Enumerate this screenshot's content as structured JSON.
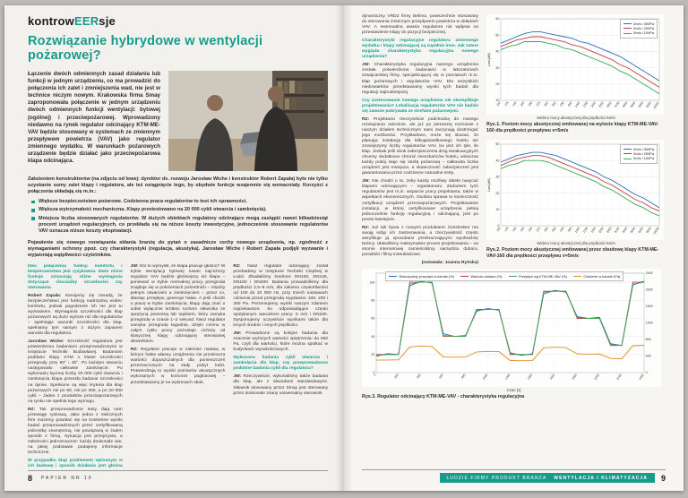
{
  "accent": "#169b8d",
  "masthead": {
    "pre": "kontrow",
    "hl": "EER",
    "post": "sje"
  },
  "title": "Rozwiązanie hybrydowe w wentylacji pożarowej?",
  "lead": "Łączenie dwóch odmiennych zasad działania lub funkcji w jednym urządzeniu, co ma prowadzić do połączenia ich zalet i zmniejszenia wad, nie jest w technice niczym nowym. Krakowska firma Smay zaproponowała połączenie w jednym urządzeniu dwóch odmiennych funkcji wentylacji: bytowej (ogólnej) i przeciwpożarowej. Wprowadzony niedawno na rynek regulator odcinający KTM-ME-VAV będzie stosowany w systemach ze zmiennym przepływem powietrza (VAV) jako regulator zmiennego wydatku. W warunkach pożarowych urządzenie będzie działać jako przeciwpożarowa klapa odcinająca.",
  "photo_caption": "Założeniem konstruktorów (na zdjęciu od lewej: dyrektor ds. rozwoju Jarosław Wiche i konstruktor Robert Zapała) było nie tylko uzyskanie sumy zalet klapy i regulatora, ale też osiągnięcie tego, by obydwie funkcje wzajemnie się wzmacniały. Korzyści z połączenia składają się m.in.:",
  "bullets": [
    "Większe bezpieczeństwo pożarowe. Codzienna praca regulatorów to test ich sprawności.",
    "Większa wytrzymałość mechaniczna. Klapy przetestowano na 20 000 cykli otwarcia i zamknięcia).",
    "Mniejsza liczba stosowanych regulatorów. W dużych obiektach regulatory odcinające mogą zastąpić nawet kilkadziesiąt procent urządzeń regulacyjnych, co przekłada się na niższe koszty inwestycyjne, jednocześnie stosowanie regulatorów VAV oznacza niższe koszty eksploatacji."
  ],
  "closing": "Pojawienie się nowego rozwiązania skłania branżę do pytań o zasadnicze cechy nowego urządzenia, np. zgodność z wymaganiami ochrony ppoż. czy charakterystyki (regulacja, akustyka). Jarosław Wiche i Robert Zapała podjęli wyzwanie i wyjaśniają wątpliwości czytelników.",
  "left_cols": [
    [
      {
        "k": "q",
        "t": "Idea połączenia funkcji komfortu i bezpieczeństwa jest ryzykowna. Dwie różne funkcje oznaczają różne wymagania dotyczące chociażby szczelności czy sterowania."
      },
      {
        "sp": "Robert Zapała",
        "t": "Kierujemy się zasadą, że bezpieczeństwo jest funkcją nadrzędną wobec komfortu, jednak pogodzenie ich nie jest tu wyzwaniem. Wymagania szczelności dla klap pożarowych są dużo wyższe niż dla regulatorów – spełniając warunki szczelności dla klap, spełniamy tym samym z dużym zapasem warunki dla regulatora."
      },
      {
        "sp": "Jarosław Wiche",
        "t": "Szczelność regulatora jest potwierdzona badaniami przeprowadzonymi w Instytucie Techniki Budowlanej. Badaniom poddano klapy KTM o klasie szczelności przegrody przy 60° i 30°. Po każdym otwarciu następowało całkowite zamknięcie. Po wykonaniu łącznej liczby 20 000 cykli otwarcia i zamknięcia klapa przeszła badanie szczelności na dymie. Spełnione są więc kryteria dla klap pożarowych nie po 50, nie po 300, a po 20 000 cykli – żaden z produktów przeciwpożarowych na rynku nie spełnia tego wymogu."
      },
      {
        "sp": "RZ",
        "t": "Tak przeprowadzone testy dają nam przewagę rynkową. Jako jedna z nielicznych firm możemy powołać się na konkretne wyniki badań przeprowadzonych przez certyfikowaną jednostkę zewnętrzną, nie powiązaną w żaden sposób z firmą. Sytuacja jest przejrzysta, a zależności jednoznaczne: każdy doskonale wie, na jakiej podstawie podajemy informacje techniczne."
      },
      {
        "k": "q",
        "t": "W przypadku klap problemem wpisanym w ich budowę i sposób działania jest głośna praca. Jak wygląda akustyka w działaniu regulacyjnym?"
      }
    ],
    [
      {
        "sp": "JW",
        "t": "Kto to wymyślił, że klapa pracuje głośno? W trybie wentylacji bytowej nawet najcichszy regulator VAV będzie głośniejszy niż klapa – ponieważ w trybie normalnej pracy przegroda znajduje się w położeniach pośrednich – między pełnym otwarciem a zamknięciem – przez co, dławiąc przepływ, generuje hałas. A jeśli chodzi o pracę w trybie zamknięcia, klapy dają znać o sobie wyłącznie krótkim ruchem siłownika ze sprężyną powrotną lub topikiem, który zamyka przegrodę w czasie 1–2 sekund. Nasz regulator zamyka przegrodę łagodnie, dzięki czemu w całym cyklu pracy pozostaje cichszy od klasycznej klapy odcinającej sterowanej siłownikiem."
      },
      {
        "sp": "RZ",
        "t": "Regulator pracuje w zakresie nastaw, w którym hałas własny urządzenia nie przekracza wartości dopuszczalnych dla pomieszczeń przeznaczonych na stały pobyt ludzi. Potwierdzają to wyniki pomiarów akustycznych wykonanych w komorze pogłosowej – przedstawiamy je na wykresach obok."
      }
    ],
    [
      {
        "sp": "RZ",
        "t": "Nasz regulator odcinający został przebadany w Instytucie Techniki Cieplnej w Łodzi. Zbadaliśmy średnice DN100, DN125, DN160 i DN200. Badania prowadziliśmy dla prędkości 2,5–8 m/s, dla zakresu częstotliwości od 100 do 10 000 Hz, przy trzech nastawach ciśnienia przed przegrodą regulatora: 100, 200 i 300 Pa. Prezentujemy wyniki naszym zdaniem najciekawsze, bo odpowiadające często spotykanym warunkom pracy: 5 m/s i DN160. Dysponujemy oczywiście wynikami także dla innych średnic i innych prędkości."
      },
      {
        "sp": "JW",
        "t": "Prowadzone są kolejne badania dla znacznie wyższych wartości spiętrzenia: do 650 Pa, czyli dla wartości, które można spotkać w budynkach wysokościowych."
      },
      {
        "k": "q",
        "t": "Wykonano badania cykli otwarcia i zamknięcia dla klap, czy przeprowadzono podobne badania cykli dla regulatora?"
      },
      {
        "sp": "JW",
        "t": "Rzeczywiście, wykonaliśmy także badania dla klap, ale z obwodami standardowymi. Siłownik stosowany przez Smay jest sterowany przez doskonale znany uniwersalny sterownik"
      }
    ]
  ],
  "right_col": [
    {
      "t": "dynamiczny VRD2 firmy Belimo, powszechnie stosowany do sterowania zmiennym przepływem powietrza w układach VAV. A ewentualna awaria regulatora nie wpływa na przestawienie klapy do pozycji bezpiecznej."
    },
    {
      "k": "q",
      "t": "Charakterystyki regulacyjne regulatora zmiennego wydatku i klapy odcinającej są zupełnie inne. Jak zatem wygląda charakterystyka regulacyjna nowego urządzenia?"
    },
    {
      "sp": "JW",
      "t": "Charakterystyka regulacyjna naszego urządzenia została potwierdzona badaniami w laboratoriach szwajcarskiej firmy, specjalizującej się w pomiarach m.in. klap pożarowych i regulatorów VAV. Dla wszystkich niedowiarków przedstawiamy wyniki tych badań dla regulacji najtrudniejszej."
    },
    {
      "k": "q",
      "t": "Czy zastosowanie nowego urządzenia nie skomplikuje projektowania? Lokalizacja regulatorów VAV nie będzie się zawsze pokrywała ze strefami pożarowymi."
    },
    {
      "sp": "RZ",
      "t": "Projektanci rzeczywiście podchodzą do nowego rozwiązania ostrożnie, ale już po pierwszej rozmowie z naszym działem technicznym sami zaczynają dostrzegać jego możliwości. Przykładowo, może się okazać, że planując instalację dla kilkugwiazdkowego hotelu nie zmniejszymy liczby regulatorów VAV, bo jest ich tyle, ile klap. Jednak jeśli obok zabezpieczenia dróg ewakuacyjnych chcemy dodatkowo chronić mieszkańców hotelu, wówczas każdy pokój staje się strefą pożarową – całkowita liczba urządzeń jest mniejsza, a skuteczność zabezpieczeń jest gwarantowana przez codzienne naturalne testy."
    },
    {
      "sp": "JW",
      "t": "Nie chodzi o to, żeby każdy możliwy obiekt nasycać klapami odcinającymi – regulatorami. Zadaniem tych regulatorów jest m.in. wsparcie pracy projektanta, także w aspektach ekonomicznych. Osobna sprawa to konieczność certyfikacji urządzeń przeciwpożarowych. Projektowanie instalacji, w której certyfikowane urządzenia pełnią jednocześnie funkcję regulacyjną i odcinającą, jest po prostu łatwiejsze."
    },
    {
      "sp": "RZ",
      "t": "Już tak bywa z nowymi produktami: konstruktor ma swoją wizję ich zastosowania, a rzeczywistość często weryfikuje ją sposobami przekraczającymi wyobraźnię twórcy. Ułatwiliśmy maksymalnie proces projektowania – na stronie internetowej zamieściliśmy narzędzia doboru, poradniki i filmy instruktażowe."
    },
    {
      "k": "note",
      "t": "(notowała: Joanna Ryńska)"
    }
  ],
  "charts": [
    {
      "id": "c1",
      "type": "line",
      "caption": "Rys.1. Poziom mocy akustycznej emitowanej na wylocie klapy KTM-ME-VAV-160 dla prędkości przepływu v=5m/s",
      "axis_title": "Widmo mocy akustycznej dla prędkości 5m/s",
      "ylabel": "LwA [dB]",
      "ylim": [
        10,
        60
      ],
      "y_ticks": [
        10,
        20,
        30,
        40,
        50,
        60
      ],
      "rot_x": true,
      "x_labels": [
        "100",
        "125",
        "160",
        "200",
        "250",
        "315",
        "400",
        "500",
        "630",
        "800",
        "1000",
        "1250",
        "1600",
        "2000",
        "2500",
        "3150",
        "4000",
        "5000",
        "6300",
        "8000",
        "10000"
      ],
      "series": [
        {
          "name": "5m/s i 300Pa",
          "color": "#2b6cb8",
          "values": [
            45,
            47,
            49,
            51,
            52,
            52,
            51,
            50,
            49,
            48,
            46,
            45,
            43,
            41,
            39,
            37,
            34,
            31,
            28,
            25,
            22
          ]
        },
        {
          "name": "5m/s i 200Pa",
          "color": "#c23b3b",
          "values": [
            43,
            45,
            47,
            48,
            49,
            49,
            48,
            47,
            46,
            44,
            43,
            41,
            39,
            37,
            35,
            32,
            30,
            27,
            24,
            21,
            18
          ]
        },
        {
          "name": "5m/s i 100Pa",
          "color": "#3aa655",
          "values": [
            41,
            43,
            44,
            46,
            46,
            46,
            45,
            44,
            42,
            41,
            39,
            37,
            35,
            33,
            31,
            28,
            26,
            23,
            20,
            17,
            14
          ]
        }
      ]
    },
    {
      "id": "c2",
      "type": "line",
      "caption": "Rys.2. Poziom mocy akustycznej emitowanej przez obudowę klapy KTM-ME-VAV-160 dla prędkości przepływu v=5m/s",
      "axis_title": "Widmo mocy akustycznej dla prędkości 5m/s",
      "ylabel": "LwA [dB]",
      "ylim": [
        0,
        50
      ],
      "y_ticks": [
        0,
        10,
        20,
        30,
        40,
        50
      ],
      "rot_x": true,
      "x_labels": [
        "100",
        "125",
        "160",
        "200",
        "250",
        "315",
        "400",
        "500",
        "630",
        "800",
        "1000",
        "1250",
        "1600",
        "2000",
        "2500",
        "3150",
        "4000",
        "5000",
        "6300",
        "8000",
        "10000"
      ],
      "series": [
        {
          "name": "5m/s i 300Pa",
          "color": "#2b6cb8",
          "values": [
            39,
            41,
            43,
            44,
            45,
            45,
            44,
            43,
            41,
            39,
            37,
            35,
            33,
            30,
            28,
            25,
            22,
            19,
            17,
            14,
            11
          ]
        },
        {
          "name": "5m/s i 200Pa",
          "color": "#c23b3b",
          "values": [
            37,
            39,
            41,
            42,
            43,
            43,
            42,
            40,
            38,
            36,
            34,
            32,
            30,
            27,
            25,
            22,
            19,
            16,
            14,
            11,
            9
          ]
        },
        {
          "name": "5m/s i 100Pa",
          "color": "#3aa655",
          "values": [
            35,
            37,
            38,
            40,
            40,
            40,
            39,
            37,
            35,
            33,
            31,
            29,
            27,
            24,
            22,
            19,
            16,
            13,
            11,
            8,
            6
          ]
        }
      ]
    },
    {
      "id": "c3",
      "type": "line",
      "caption": "Rys.3. Regulator odcinający KTM-ME-VAV - charakterystyka regulacyjna",
      "axis_title": "Czas [s]",
      "ylim": [
        0,
        110
      ],
      "y_ticks": [
        0,
        20,
        40,
        60,
        80,
        100
      ],
      "rlim": [
        0,
        2400
      ],
      "r_ticks": [
        0,
        400,
        800,
        1200,
        1600,
        2000,
        2400
      ],
      "rot_x": true,
      "x_labels": [
        "0",
        "200",
        "400",
        "600",
        "800",
        "1000",
        "1200",
        "1400",
        "1600",
        "1800",
        "2000",
        "2200",
        "2400"
      ],
      "series": [
        {
          "name": "Rzeczywisty przepływ w kanale (%)",
          "color": "#2b6cb8",
          "values": [
            18,
            21,
            20,
            96,
            101,
            99,
            43,
            40,
            41,
            68,
            71,
            69,
            22,
            19,
            21,
            87,
            91,
            89,
            62,
            60,
            61,
            32,
            30,
            97,
            101
          ]
        },
        {
          "name": "Wartość zadana (%)",
          "color": "#c23b3b",
          "values": [
            20,
            20,
            20,
            100,
            100,
            100,
            40,
            40,
            40,
            70,
            70,
            70,
            20,
            20,
            20,
            90,
            90,
            90,
            60,
            60,
            60,
            30,
            30,
            100,
            100
          ]
        },
        {
          "name": "Przepływ wg KTM-ME-VAV (%)",
          "color": "#3aa655",
          "values": [
            19,
            20,
            20,
            98,
            100,
            100,
            41,
            40,
            40,
            69,
            70,
            70,
            21,
            20,
            20,
            89,
            90,
            90,
            61,
            60,
            60,
            31,
            30,
            98,
            100
          ]
        },
        {
          "name": "Ciśnienie w kanale (Pa)",
          "color": "#e08a1e",
          "axis": "R",
          "values": [
            300,
            305,
            310,
            620,
            640,
            630,
            380,
            372,
            376,
            500,
            512,
            506,
            292,
            286,
            290,
            598,
            612,
            604,
            452,
            446,
            450,
            342,
            336,
            648,
            660
          ]
        }
      ]
    }
  ],
  "footer": {
    "left_page": "8",
    "left_label": "PAPIER NR 10",
    "right_items": "LUDZIE FIRMY PRODUKT BRANŻA",
    "right_strong": "WENTYLACJA I KLIMATYZACJA",
    "right_page": "9"
  }
}
